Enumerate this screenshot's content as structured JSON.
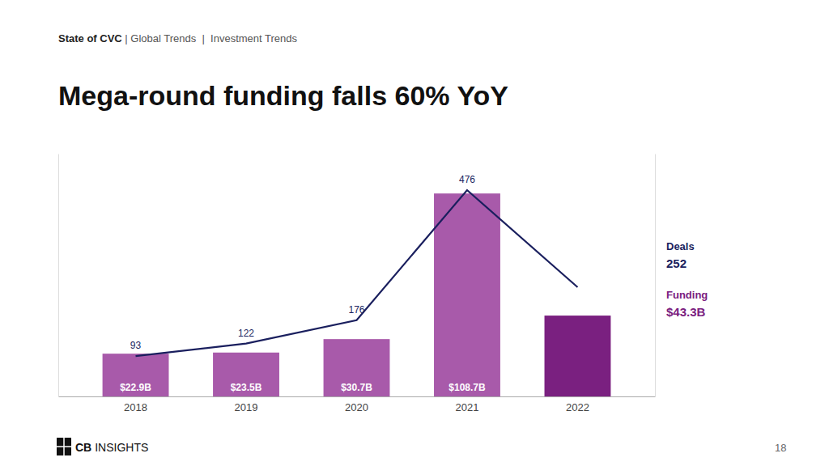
{
  "chart_data": {
    "type": "bar",
    "title": "Mega-round funding falls 60% YoY",
    "subtitle": [
      "State of CVC",
      " | Global Trends  |  Investment Trends"
    ],
    "categories": [
      "2018",
      "2019",
      "2020",
      "2021",
      "2022"
    ],
    "series": [
      {
        "type": "bar",
        "colors": [
          "#a85aaa",
          "#a85aaa",
          "#a85aaa",
          "#a85aaa",
          "#7a2080"
        ],
        "values": [
          22.9,
          23.5,
          30.7,
          108.7,
          43.3
        ],
        "value_labels": [
          "$22.9B",
          "$23.5B",
          "$30.7B",
          "$108.7B",
          null
        ]
      },
      {
        "type": "line",
        "axis": "y2",
        "color": "#1a1f5e",
        "values": [
          93,
          122,
          176,
          476,
          252
        ],
        "value_labels": [
          "93",
          "122",
          "176",
          "476",
          null
        ]
      }
    ],
    "ylim": [
      0,
      130
    ],
    "y2lim": [
      0,
      560
    ],
    "tick_labels": "x",
    "annotations": [
      {
        "text": "Deals",
        "color": "#1a1f5e"
      },
      {
        "text": "252",
        "color": "#1a1f5e"
      },
      {
        "text": "Funding",
        "color": "#7a2080"
      },
      {
        "text": "$43.3B",
        "color": "#7a2080"
      }
    ],
    "footer": [
      "CB",
      "INSIGHTS"
    ],
    "page_number": "18"
  }
}
